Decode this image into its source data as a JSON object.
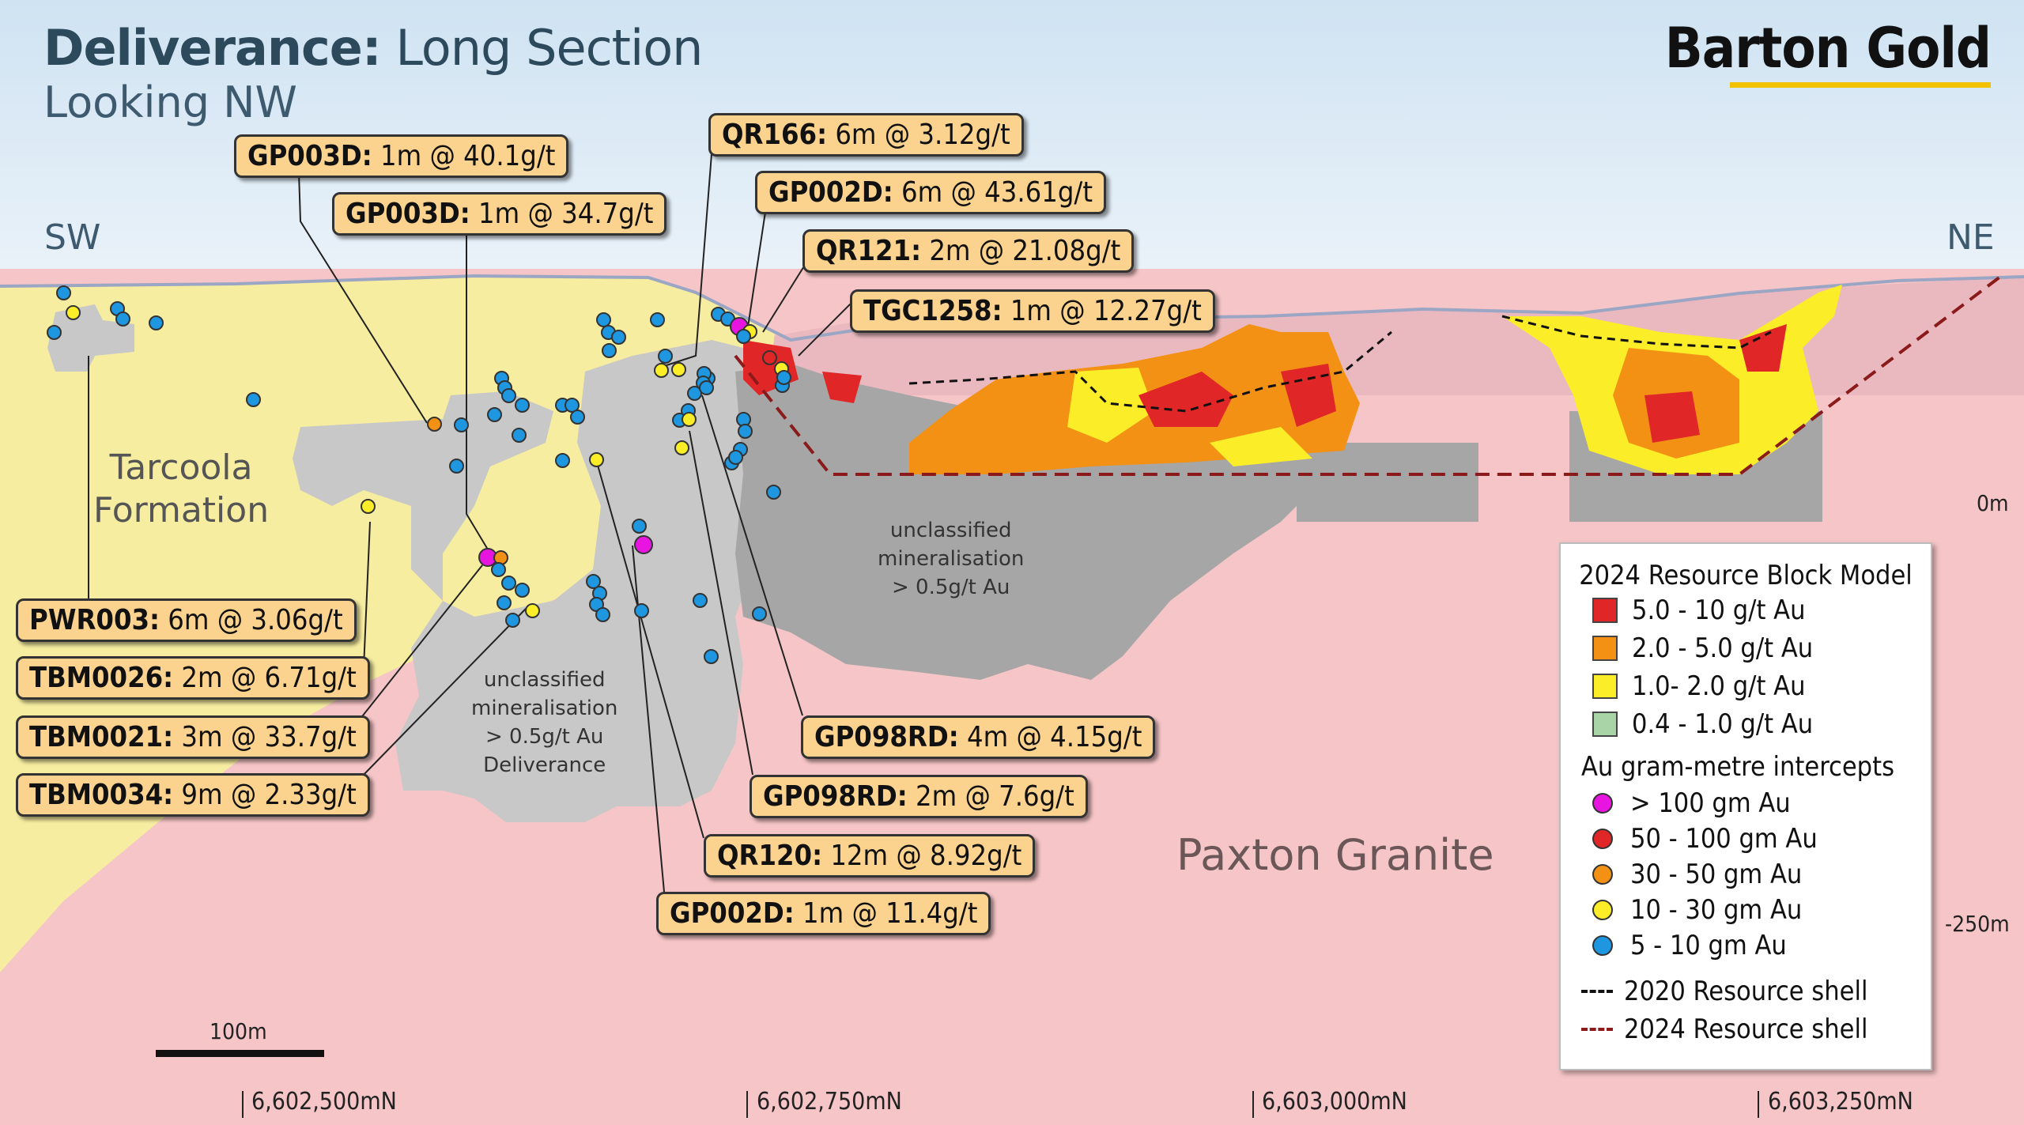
{
  "title": {
    "bold": "Deliverance:",
    "rest": " Long Section"
  },
  "subtitle": "Looking NW",
  "brand": "Barton Gold",
  "directions": {
    "left": "SW",
    "right": "NE"
  },
  "regions": {
    "tarcoola": [
      "Tarcoola",
      "Formation"
    ],
    "unclassified_center": [
      "unclassified",
      "mineralisation",
      "> 0.5g/t Au"
    ],
    "unclassified_deliverance": [
      "unclassified",
      "mineralisation",
      "> 0.5g/t Au",
      "Deliverance"
    ],
    "paxton": "Paxton Granite"
  },
  "colors": {
    "sky_top": "#d7e8f4",
    "sky_bottom": "#eef4f9",
    "tarcoola": "#f6eda0",
    "granite": "#f6c5c7",
    "grey_min": "#c9c9c9",
    "dark_grey_min": "#9a9a9a",
    "red": "#e02626",
    "orange": "#f39115",
    "yellow": "#fbee28",
    "green": "#a8d4a8",
    "magenta": "#e815e0",
    "blue": "#1e97e0",
    "callout": "#fbd38f",
    "shell_2024": "#8b1a1a"
  },
  "callouts": [
    {
      "hole": "GP003D:",
      "value": " 1m @ 40.1g/t"
    },
    {
      "hole": "GP003D:",
      "value": " 1m @ 34.7g/t"
    },
    {
      "hole": "QR166:",
      "value": " 6m @ 3.12g/t"
    },
    {
      "hole": "GP002D:",
      "value": " 6m @ 43.61g/t"
    },
    {
      "hole": "QR121:",
      "value": " 2m @ 21.08g/t"
    },
    {
      "hole": "TGC1258:",
      "value": " 1m @ 12.27g/t"
    },
    {
      "hole": "PWR003:",
      "value": " 6m @ 3.06g/t"
    },
    {
      "hole": "TBM0026:",
      "value": " 2m @ 6.71g/t"
    },
    {
      "hole": "TBM0021:",
      "value": " 3m @ 33.7g/t"
    },
    {
      "hole": "TBM0034:",
      "value": " 9m @ 2.33g/t"
    },
    {
      "hole": "GP098RD:",
      "value": " 4m @ 4.15g/t"
    },
    {
      "hole": "GP098RD:",
      "value": " 2m @ 7.6g/t"
    },
    {
      "hole": "QR120:",
      "value": " 12m @ 8.92g/t"
    },
    {
      "hole": "GP002D:",
      "value": " 1m @ 11.4g/t"
    }
  ],
  "legend": {
    "block_title": "2024 Resource Block Model",
    "blocks": [
      {
        "label": "5.0 - 10 g/t Au",
        "color": "#e02626"
      },
      {
        "label": "2.0 - 5.0 g/t Au",
        "color": "#f39115"
      },
      {
        "label": "1.0- 2.0 g/t Au",
        "color": "#fbee28"
      },
      {
        "label": "0.4 - 1.0 g/t Au",
        "color": "#a8d4a8"
      }
    ],
    "intercept_title": "Au gram-metre intercepts",
    "intercepts": [
      {
        "label": "> 100 gm Au",
        "color": "#e815e0"
      },
      {
        "label": "50 - 100 gm Au",
        "color": "#e02626"
      },
      {
        "label": "30 - 50 gm Au",
        "color": "#f39115"
      },
      {
        "label": "10 - 30 gm Au",
        "color": "#fbee28"
      },
      {
        "label": "5 - 10 gm Au",
        "color": "#1e97e0"
      }
    ],
    "shells": [
      {
        "label": "2020 Resource shell",
        "color": "#111111",
        "style": "dashed"
      },
      {
        "label": "2024 Resource shell",
        "color": "#8b1a1a",
        "style": "dashed"
      }
    ]
  },
  "scale_bar": "100m",
  "elevations": [
    "0m",
    "-250m"
  ],
  "northings": [
    "6,602,500mN",
    "6,602,750mN",
    "6,603,000mN",
    "6,603,250mN"
  ]
}
